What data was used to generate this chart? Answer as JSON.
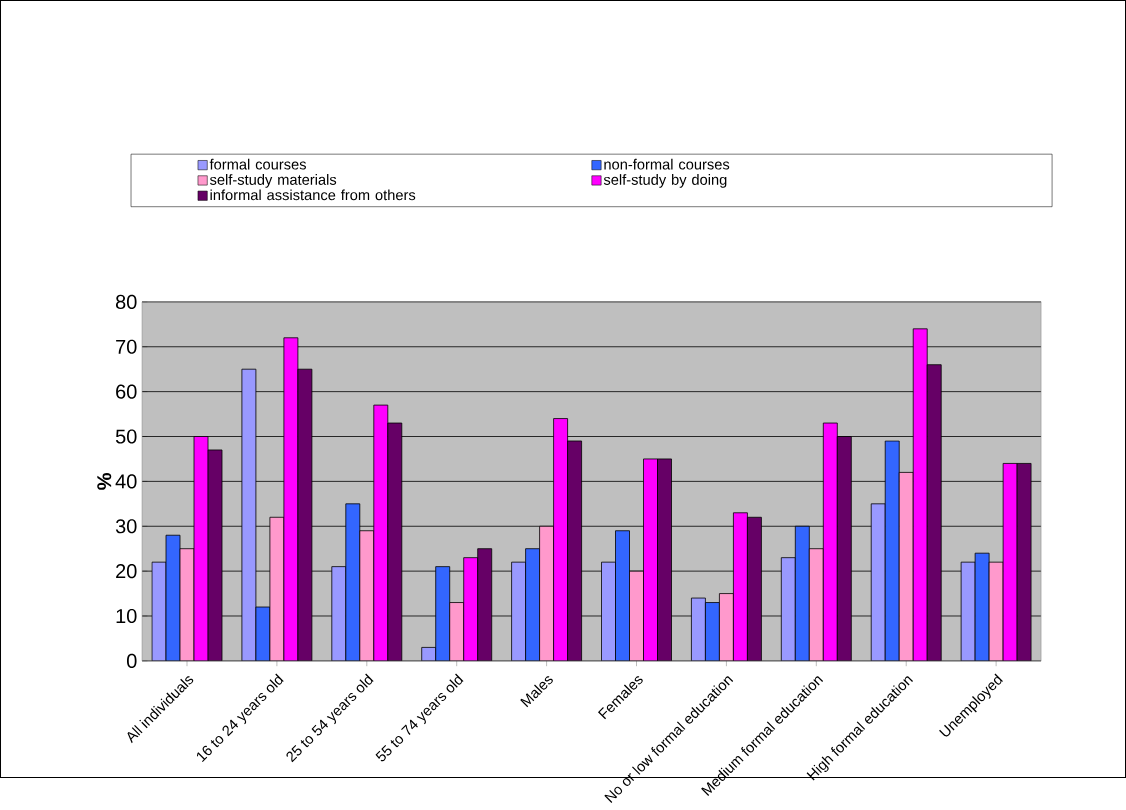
{
  "chart_data": {
    "type": "bar",
    "ylabel": "%",
    "categories": [
      "All individuals",
      "16 to 24 years old",
      "25 to 54 years old",
      "55 to 74 years old",
      "Males",
      "Females",
      "No or low formal education",
      "Medium formal education",
      "High formal education",
      "Unemployed"
    ],
    "series": [
      {
        "name": "formal courses",
        "color": "#9999ff",
        "values": [
          22,
          65,
          21,
          3,
          22,
          22,
          14,
          23,
          35,
          22
        ]
      },
      {
        "name": "non-formal courses",
        "color": "#3366ff",
        "values": [
          28,
          12,
          35,
          21,
          25,
          29,
          13,
          30,
          49,
          24
        ]
      },
      {
        "name": "self-study materials",
        "color": "#ff99cc",
        "values": [
          25,
          32,
          29,
          13,
          30,
          20,
          15,
          25,
          42,
          22
        ]
      },
      {
        "name": "self-study by doing",
        "color": "#ff00ff",
        "values": [
          50,
          72,
          57,
          23,
          54,
          45,
          33,
          53,
          74,
          44
        ]
      },
      {
        "name": "informal assistance from others",
        "color": "#660066",
        "values": [
          47,
          65,
          53,
          25,
          49,
          45,
          32,
          50,
          66,
          44
        ]
      }
    ],
    "ylim": [
      0,
      80
    ],
    "yticks": [
      0,
      10,
      20,
      30,
      40,
      50,
      60,
      70,
      80
    ],
    "grid": "y",
    "legend": "top"
  }
}
